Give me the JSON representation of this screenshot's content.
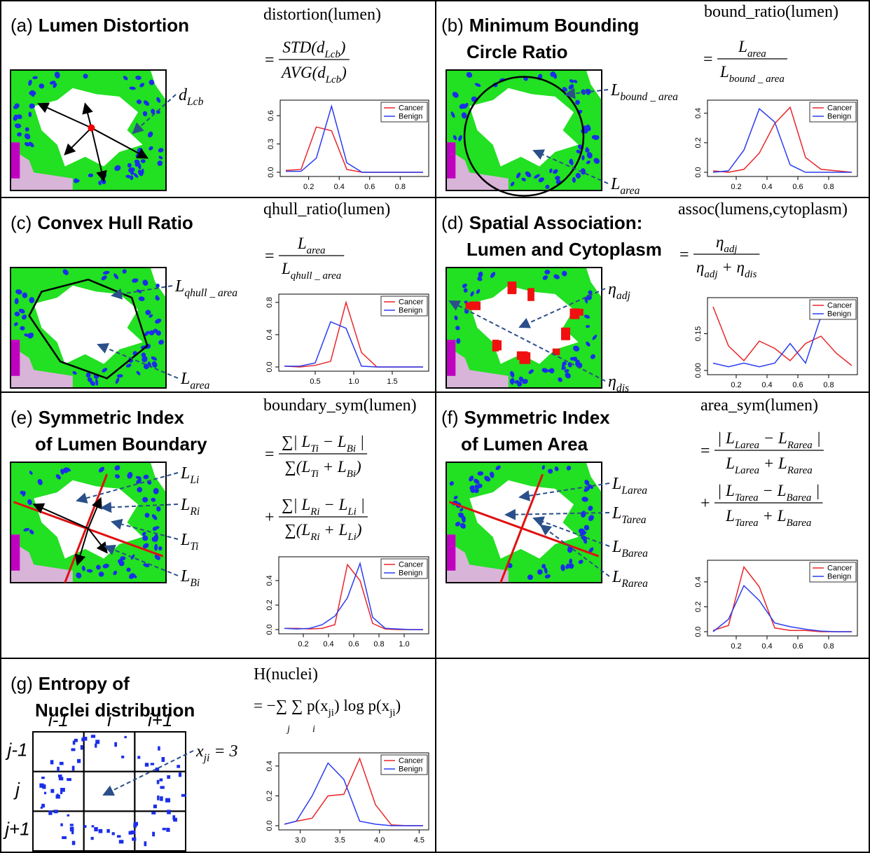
{
  "panels": [
    {
      "label": "(a)",
      "title": [
        "Lumen Distortion"
      ],
      "formula": {
        "name": "distortion(lumen)",
        "terms": [
          {
            "op": "=",
            "num": [
              {
                "text": "STD(d"
              },
              {
                "sub": "Lcb"
              },
              {
                "text": ")"
              }
            ],
            "den": [
              {
                "text": "AVG(d"
              },
              {
                "sub": "Lcb"
              },
              {
                "text": ")"
              }
            ]
          }
        ]
      },
      "annotations": [
        [
          {
            "text": "d"
          },
          {
            "sub": "Lcb"
          }
        ]
      ]
    },
    {
      "label": "(b)",
      "title": [
        "Minimum Bounding",
        "Circle Ratio"
      ],
      "formula": {
        "name": "bound_ratio(lumen)",
        "terms": [
          {
            "op": "=",
            "num": [
              {
                "text": "L"
              },
              {
                "sub": "area"
              }
            ],
            "den": [
              {
                "text": "L"
              },
              {
                "sub": "bound _ area"
              }
            ]
          }
        ]
      },
      "annotations": [
        [
          {
            "text": "L"
          },
          {
            "sub": "bound _ area"
          }
        ],
        [
          {
            "text": "L"
          },
          {
            "sub": "area"
          }
        ]
      ]
    },
    {
      "label": "(c)",
      "title": [
        "Convex Hull Ratio"
      ],
      "formula": {
        "name": "qhull_ratio(lumen)",
        "terms": [
          {
            "op": "=",
            "num": [
              {
                "text": "L"
              },
              {
                "sub": "area"
              }
            ],
            "den": [
              {
                "text": "L"
              },
              {
                "sub": "qhull _ area"
              }
            ]
          }
        ]
      },
      "annotations": [
        [
          {
            "text": "L"
          },
          {
            "sub": "qhull _ area"
          }
        ],
        [
          {
            "text": "L"
          },
          {
            "sub": "area"
          }
        ]
      ]
    },
    {
      "label": "(d)",
      "title": [
        "Spatial Association:",
        "Lumen and Cytoplasm"
      ],
      "formula": {
        "name": "assoc(lumens,cytoplasm)",
        "terms": [
          {
            "op": "=",
            "num": [
              {
                "text": "η"
              },
              {
                "sub": "adj"
              }
            ],
            "den": [
              {
                "text": "η"
              },
              {
                "sub": "adj"
              },
              {
                "text": " + η"
              },
              {
                "sub": "dis"
              }
            ]
          }
        ]
      },
      "annotations": [
        [
          {
            "text": "η"
          },
          {
            "sub": "adj"
          }
        ],
        [
          {
            "text": "η"
          },
          {
            "sub": "dis"
          }
        ]
      ]
    },
    {
      "label": "(e)",
      "title": [
        "Symmetric Index",
        "of Lumen Boundary"
      ],
      "formula": {
        "name": "boundary_sym(lumen)",
        "terms": [
          {
            "op": "=",
            "num": [
              {
                "text": "∑| L"
              },
              {
                "sub": "Ti"
              },
              {
                "text": " − L"
              },
              {
                "sub": "Bi"
              },
              {
                "text": " |"
              }
            ],
            "den": [
              {
                "text": "∑(L"
              },
              {
                "sub": "Ti"
              },
              {
                "text": " + L"
              },
              {
                "sub": "Bi"
              },
              {
                "text": ")"
              }
            ]
          },
          {
            "op": "+",
            "num": [
              {
                "text": "∑| L"
              },
              {
                "sub": "Ri"
              },
              {
                "text": " − L"
              },
              {
                "sub": "Li"
              },
              {
                "text": " |"
              }
            ],
            "den": [
              {
                "text": "∑(L"
              },
              {
                "sub": "Ri"
              },
              {
                "text": " + L"
              },
              {
                "sub": "Li"
              },
              {
                "text": ")"
              }
            ]
          }
        ]
      },
      "annotations": [
        [
          {
            "text": "L"
          },
          {
            "sub": "Li"
          }
        ],
        [
          {
            "text": "L"
          },
          {
            "sub": "Ri"
          }
        ],
        [
          {
            "text": "L"
          },
          {
            "sub": "Ti"
          }
        ],
        [
          {
            "text": "L"
          },
          {
            "sub": "Bi"
          }
        ]
      ]
    },
    {
      "label": "(f)",
      "title": [
        "Symmetric Index",
        "of Lumen Area"
      ],
      "formula": {
        "name": "area_sym(lumen)",
        "terms": [
          {
            "op": "=",
            "num": [
              {
                "text": "| L"
              },
              {
                "sub": "Larea"
              },
              {
                "text": " − L"
              },
              {
                "sub": "Rarea"
              },
              {
                "text": " |"
              }
            ],
            "den": [
              {
                "text": "L"
              },
              {
                "sub": "Larea"
              },
              {
                "text": " + L"
              },
              {
                "sub": "Rarea"
              }
            ]
          },
          {
            "op": "+",
            "num": [
              {
                "text": "| L"
              },
              {
                "sub": "Tarea"
              },
              {
                "text": " − L"
              },
              {
                "sub": "Barea"
              },
              {
                "text": " |"
              }
            ],
            "den": [
              {
                "text": "L"
              },
              {
                "sub": "Tarea"
              },
              {
                "text": " + L"
              },
              {
                "sub": "Barea"
              }
            ]
          }
        ]
      },
      "annotations": [
        [
          {
            "text": "L"
          },
          {
            "sub": "Larea"
          }
        ],
        [
          {
            "text": "L"
          },
          {
            "sub": "Tarea"
          }
        ],
        [
          {
            "text": "L"
          },
          {
            "sub": "Barea"
          }
        ],
        [
          {
            "text": "L"
          },
          {
            "sub": "Rarea"
          }
        ]
      ]
    },
    {
      "label": "(g)",
      "title": [
        "Entropy of",
        "Nuclei distribution"
      ],
      "formula": {
        "name": "H(nuclei)",
        "expression": [
          {
            "text": "= −∑ ∑ p(x"
          },
          {
            "sub": "ji"
          },
          {
            "text": ") log p(x"
          },
          {
            "sub": "ji"
          },
          {
            "text": ")"
          }
        ],
        "sum_indices": [
          "j",
          "i"
        ]
      },
      "annotations": [
        [
          {
            "text": "x"
          },
          {
            "sub": "ji"
          },
          {
            "text": " = 3"
          }
        ]
      ],
      "grid_labels": {
        "columns": [
          "i-1",
          "i",
          "i+1"
        ],
        "rows": [
          "j-1",
          "j",
          "j+1"
        ]
      }
    }
  ],
  "chart_data": [
    {
      "type": "line",
      "x": [
        0.05,
        0.15,
        0.25,
        0.35,
        0.45,
        0.55,
        0.65,
        0.75,
        0.85,
        0.95
      ],
      "xlim": [
        0.05,
        0.95
      ],
      "xticks": [
        0.2,
        0.4,
        0.6,
        0.8
      ],
      "ylim": [
        0,
        0.72
      ],
      "yticks": [
        {
          "value": 0,
          "label": "0.0"
        },
        0.3,
        0.6
      ],
      "legend": "top-right",
      "series": [
        {
          "name": "Cancer",
          "color": "#e8252a",
          "values": [
            0.02,
            0.03,
            0.48,
            0.44,
            0.03,
            0,
            0,
            0,
            0,
            0
          ]
        },
        {
          "name": "Benign",
          "color": "#2a3cf0",
          "values": [
            0.01,
            0.01,
            0.15,
            0.7,
            0.1,
            0,
            0,
            0,
            0,
            0
          ]
        }
      ]
    },
    {
      "type": "line",
      "x": [
        0.05,
        0.15,
        0.25,
        0.35,
        0.45,
        0.55,
        0.65,
        0.75,
        0.85,
        0.95
      ],
      "xlim": [
        0.05,
        0.95
      ],
      "xticks": [
        0.2,
        0.4,
        0.6,
        0.8
      ],
      "ylim": [
        0,
        0.46
      ],
      "yticks": [
        {
          "value": 0,
          "label": "0.0"
        },
        0.2,
        0.4
      ],
      "legend": "top-right",
      "series": [
        {
          "name": "Cancer",
          "color": "#e8252a",
          "values": [
            0.01,
            0,
            0.02,
            0.13,
            0.33,
            0.44,
            0.1,
            0.02,
            0.01,
            0
          ]
        },
        {
          "name": "Benign",
          "color": "#2a3cf0",
          "values": [
            0,
            0.01,
            0.15,
            0.43,
            0.34,
            0.05,
            0,
            0,
            0,
            0
          ]
        }
      ]
    },
    {
      "type": "line",
      "x": [
        0.1,
        0.3,
        0.5,
        0.7,
        0.9,
        1.1,
        1.3,
        1.5,
        1.7,
        1.9
      ],
      "xlim": [
        0.1,
        1.9
      ],
      "xticks": [
        0.5,
        {
          "value": 1,
          "label": "1.0"
        },
        1.5
      ],
      "ylim": [
        0,
        0.85
      ],
      "yticks": [
        {
          "value": 0,
          "label": "0.0"
        },
        0.4,
        0.8
      ],
      "legend": "top-right",
      "series": [
        {
          "name": "Cancer",
          "color": "#e8252a",
          "values": [
            0.01,
            0,
            0.02,
            0.07,
            0.8,
            0.18,
            0,
            0,
            0,
            0
          ]
        },
        {
          "name": "Benign",
          "color": "#2a3cf0",
          "values": [
            0.01,
            0.01,
            0.05,
            0.56,
            0.48,
            0.01,
            0,
            0,
            0,
            0
          ]
        }
      ]
    },
    {
      "type": "line",
      "x": [
        0.05,
        0.15,
        0.25,
        0.35,
        0.45,
        0.55,
        0.65,
        0.75,
        0.85,
        0.95
      ],
      "xlim": [
        0.05,
        0.95
      ],
      "xticks": [
        0.2,
        0.4,
        0.6,
        0.8
      ],
      "ylim": [
        0,
        0.28
      ],
      "yticks": [
        {
          "value": 0,
          "label": "0.00"
        },
        0.15
      ],
      "legend": "top-right",
      "series": [
        {
          "name": "Cancer",
          "color": "#e8252a",
          "values": [
            0.26,
            0.1,
            0.04,
            0.12,
            0.09,
            0.04,
            0.11,
            0.14,
            0.07,
            0.02
          ]
        },
        {
          "name": "Benign",
          "color": "#2a3cf0",
          "values": [
            0.03,
            0.015,
            0.03,
            0.015,
            0.03,
            0.11,
            0.03,
            0.22,
            null,
            null
          ]
        }
      ]
    },
    {
      "type": "line",
      "x": [
        0.05,
        0.15,
        0.25,
        0.35,
        0.45,
        0.55,
        0.65,
        0.75,
        0.85,
        0.95,
        1.05,
        1.15
      ],
      "xlim": [
        0.05,
        1.15
      ],
      "xticks": [
        0.2,
        0.4,
        0.6,
        0.8,
        {
          "value": 1,
          "label": "1.0"
        }
      ],
      "ylim": [
        0,
        0.56
      ],
      "yticks": [
        {
          "value": 0,
          "label": "0.0"
        },
        0.2,
        0.4
      ],
      "legend": "top-right",
      "series": [
        {
          "name": "Cancer",
          "color": "#e8252a",
          "values": [
            0.01,
            0.01,
            0.005,
            0.01,
            0.04,
            0.53,
            0.4,
            0.05,
            0.005,
            0,
            0,
            0
          ]
        },
        {
          "name": "Benign",
          "color": "#2a3cf0",
          "values": [
            0.01,
            0.005,
            0.01,
            0.04,
            0.11,
            0.26,
            0.54,
            0.1,
            0.01,
            0.005,
            0,
            0
          ]
        }
      ]
    },
    {
      "type": "line",
      "x": [
        0.05,
        0.15,
        0.25,
        0.35,
        0.45,
        0.55,
        0.65,
        0.75,
        0.85,
        0.95
      ],
      "xlim": [
        0.05,
        0.95
      ],
      "xticks": [
        0.2,
        0.4,
        0.6,
        0.8
      ],
      "ylim": [
        0,
        0.54
      ],
      "yticks": [
        {
          "value": 0,
          "label": "0.0"
        },
        0.2,
        0.4
      ],
      "legend": "top-right",
      "series": [
        {
          "name": "Cancer",
          "color": "#e8252a",
          "values": [
            0.01,
            0.05,
            0.52,
            0.36,
            0.03,
            0.01,
            0.01,
            0,
            0,
            0
          ]
        },
        {
          "name": "Benign",
          "color": "#2a3cf0",
          "values": [
            0,
            0.1,
            0.37,
            0.25,
            0.07,
            0.04,
            0.02,
            0.005,
            0,
            0
          ]
        }
      ]
    },
    {
      "type": "line",
      "x": [
        2.8,
        2.95,
        3.15,
        3.35,
        3.55,
        3.75,
        3.95,
        4.15,
        4.35,
        4.55
      ],
      "xlim": [
        2.8,
        4.55
      ],
      "xticks": [
        {
          "value": 3,
          "label": "3.0"
        },
        3.5,
        {
          "value": 4,
          "label": "4.0"
        },
        4.5
      ],
      "ylim": [
        0,
        0.46
      ],
      "yticks": [
        {
          "value": 0,
          "label": "0.0"
        },
        0.2,
        0.4
      ],
      "legend": "top-right",
      "series": [
        {
          "name": "Cancer",
          "color": "#e8252a",
          "values": [
            0.01,
            0.03,
            0.05,
            0.2,
            0.21,
            0.45,
            0.14,
            0.005,
            0,
            0
          ]
        },
        {
          "name": "Benign",
          "color": "#2a3cf0",
          "values": [
            0.01,
            0.03,
            0.2,
            0.42,
            0.31,
            0.03,
            0.01,
            0,
            0,
            0
          ]
        }
      ]
    }
  ]
}
